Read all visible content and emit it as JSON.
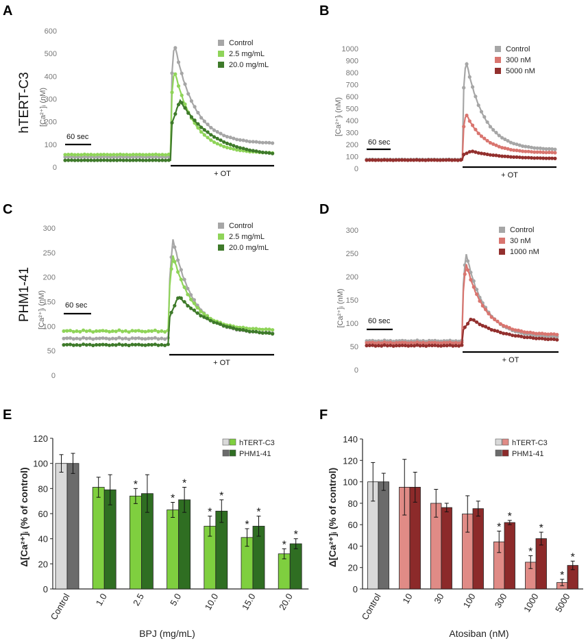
{
  "figure": {
    "panel_labels": [
      "A",
      "B",
      "C",
      "D",
      "E",
      "F"
    ],
    "row_labels": [
      "hTERT-C3",
      "PHM1-41"
    ]
  },
  "colors": {
    "control": "#a6a6a6",
    "bpj_light": "#8fd459",
    "bpj_dark": "#3e7a2a",
    "ato_light": "#d9756f",
    "ato_dark": "#93302e",
    "bar_control_light": "#d9d9d9",
    "bar_control_dark": "#6b6b6b",
    "bar_green_light": "#7fcf3f",
    "bar_green_dark": "#2f6e22",
    "bar_red_light": "#e08b86",
    "bar_red_dark": "#8c2a2a"
  },
  "chart_data": [
    {
      "panel": "A",
      "type": "line",
      "ylabel": "[Ca²⁺]ᵢ (nM)",
      "ylim": [
        0,
        600
      ],
      "yticks": [
        0,
        100,
        200,
        300,
        400,
        500,
        600
      ],
      "time_scale_label": "60 sec",
      "ot_label": "+ OT",
      "legend_position": "top-right",
      "series": [
        {
          "name": "Control",
          "color_key": "control",
          "baseline": 45,
          "peak": 550,
          "plateau": 103
        },
        {
          "name": "2.5 mg/mL",
          "color_key": "bpj_light",
          "baseline": 55,
          "peak": 430,
          "plateau": 60
        },
        {
          "name": "20.0 mg/mL",
          "color_key": "bpj_dark",
          "baseline": 30,
          "peak": 295,
          "plateau": 45
        }
      ]
    },
    {
      "panel": "B",
      "type": "line",
      "ylabel": "[Ca²⁺]ᵢ (nM)",
      "ylim": [
        0,
        1000
      ],
      "yticks": [
        0,
        100,
        200,
        300,
        400,
        500,
        600,
        700,
        800,
        900,
        1000
      ],
      "time_scale_label": "60 sec",
      "ot_label": "+ OT",
      "legend_position": "top-right",
      "series": [
        {
          "name": "Control",
          "color_key": "control",
          "baseline": 75,
          "peak": 910,
          "plateau": 155
        },
        {
          "name": "300 nM",
          "color_key": "ato_light",
          "baseline": 70,
          "peak": 460,
          "plateau": 130
        },
        {
          "name": "5000 nM",
          "color_key": "ato_dark",
          "baseline": 70,
          "peak": 145,
          "plateau": 80
        }
      ]
    },
    {
      "panel": "C",
      "type": "line",
      "ylabel": "[Ca²⁺]ᵢ (nM)",
      "ylim": [
        0,
        300
      ],
      "yticks": [
        0,
        50,
        100,
        150,
        200,
        250,
        300
      ],
      "time_scale_label": "60 sec",
      "ot_label": "+ OT",
      "legend_position": "top-right",
      "series": [
        {
          "name": "Control",
          "color_key": "control",
          "baseline": 75,
          "peak": 278,
          "plateau": 85
        },
        {
          "name": "2.5 mg/mL",
          "color_key": "bpj_light",
          "baseline": 90,
          "peak": 245,
          "plateau": 92
        },
        {
          "name": "20.0 mg/mL",
          "color_key": "bpj_dark",
          "baseline": 62,
          "peak": 162,
          "plateau": 80
        }
      ]
    },
    {
      "panel": "D",
      "type": "line",
      "ylabel": "[Ca²⁺]ᵢ (nM)",
      "ylim": [
        0,
        300
      ],
      "yticks": [
        0,
        50,
        100,
        150,
        200,
        250,
        300
      ],
      "time_scale_label": "60 sec",
      "ot_label": "+ OT",
      "legend_position": "top-right",
      "series": [
        {
          "name": "Control",
          "color_key": "control",
          "baseline": 62,
          "peak": 252,
          "plateau": 70
        },
        {
          "name": "30 nM",
          "color_key": "ato_light",
          "baseline": 58,
          "peak": 230,
          "plateau": 75
        },
        {
          "name": "1000 nM",
          "color_key": "ato_dark",
          "baseline": 52,
          "peak": 110,
          "plateau": 62
        }
      ]
    },
    {
      "panel": "E",
      "type": "bar",
      "ylabel": "Δ[Ca²⁺]ᵢ (% of control)",
      "xlabel": "BPJ (mg/mL)",
      "ylim": [
        0,
        120
      ],
      "yticks": [
        0,
        20,
        40,
        60,
        80,
        100,
        120
      ],
      "categories": [
        "Control",
        "1.0",
        "2.5",
        "5.0",
        "10.0",
        "15.0",
        "20.0"
      ],
      "series": [
        {
          "name": "hTERT-C3",
          "values": [
            100,
            81,
            74,
            63,
            50,
            41,
            28
          ],
          "errors": [
            7,
            8,
            6,
            6,
            8,
            7,
            4
          ],
          "significant": [
            false,
            false,
            true,
            true,
            true,
            true,
            true
          ]
        },
        {
          "name": "PHM1-41",
          "values": [
            100,
            79,
            76,
            71,
            62,
            50,
            36
          ],
          "errors": [
            8,
            12,
            15,
            10,
            9,
            8,
            4
          ],
          "significant": [
            false,
            false,
            false,
            true,
            true,
            true,
            true
          ]
        }
      ],
      "significance_marker": "*"
    },
    {
      "panel": "F",
      "type": "bar",
      "ylabel": "Δ[Ca²⁺]ᵢ (% of control)",
      "xlabel": "Atosiban (nM)",
      "ylim": [
        0,
        140
      ],
      "yticks": [
        0,
        20,
        40,
        60,
        80,
        100,
        120,
        140
      ],
      "categories": [
        "Control",
        "10",
        "30",
        "100",
        "300",
        "1000",
        "5000"
      ],
      "series": [
        {
          "name": "hTERT-C3",
          "values": [
            100,
            95,
            80,
            70,
            44,
            25,
            6
          ],
          "errors": [
            18,
            26,
            13,
            17,
            10,
            6,
            3
          ],
          "significant": [
            false,
            false,
            false,
            false,
            true,
            true,
            true
          ]
        },
        {
          "name": "PHM1-41",
          "values": [
            100,
            95,
            76,
            75,
            62,
            47,
            22
          ],
          "errors": [
            8,
            14,
            4,
            7,
            2,
            6,
            4
          ],
          "significant": [
            false,
            false,
            false,
            false,
            true,
            true,
            true
          ]
        }
      ],
      "significance_marker": "*"
    }
  ]
}
